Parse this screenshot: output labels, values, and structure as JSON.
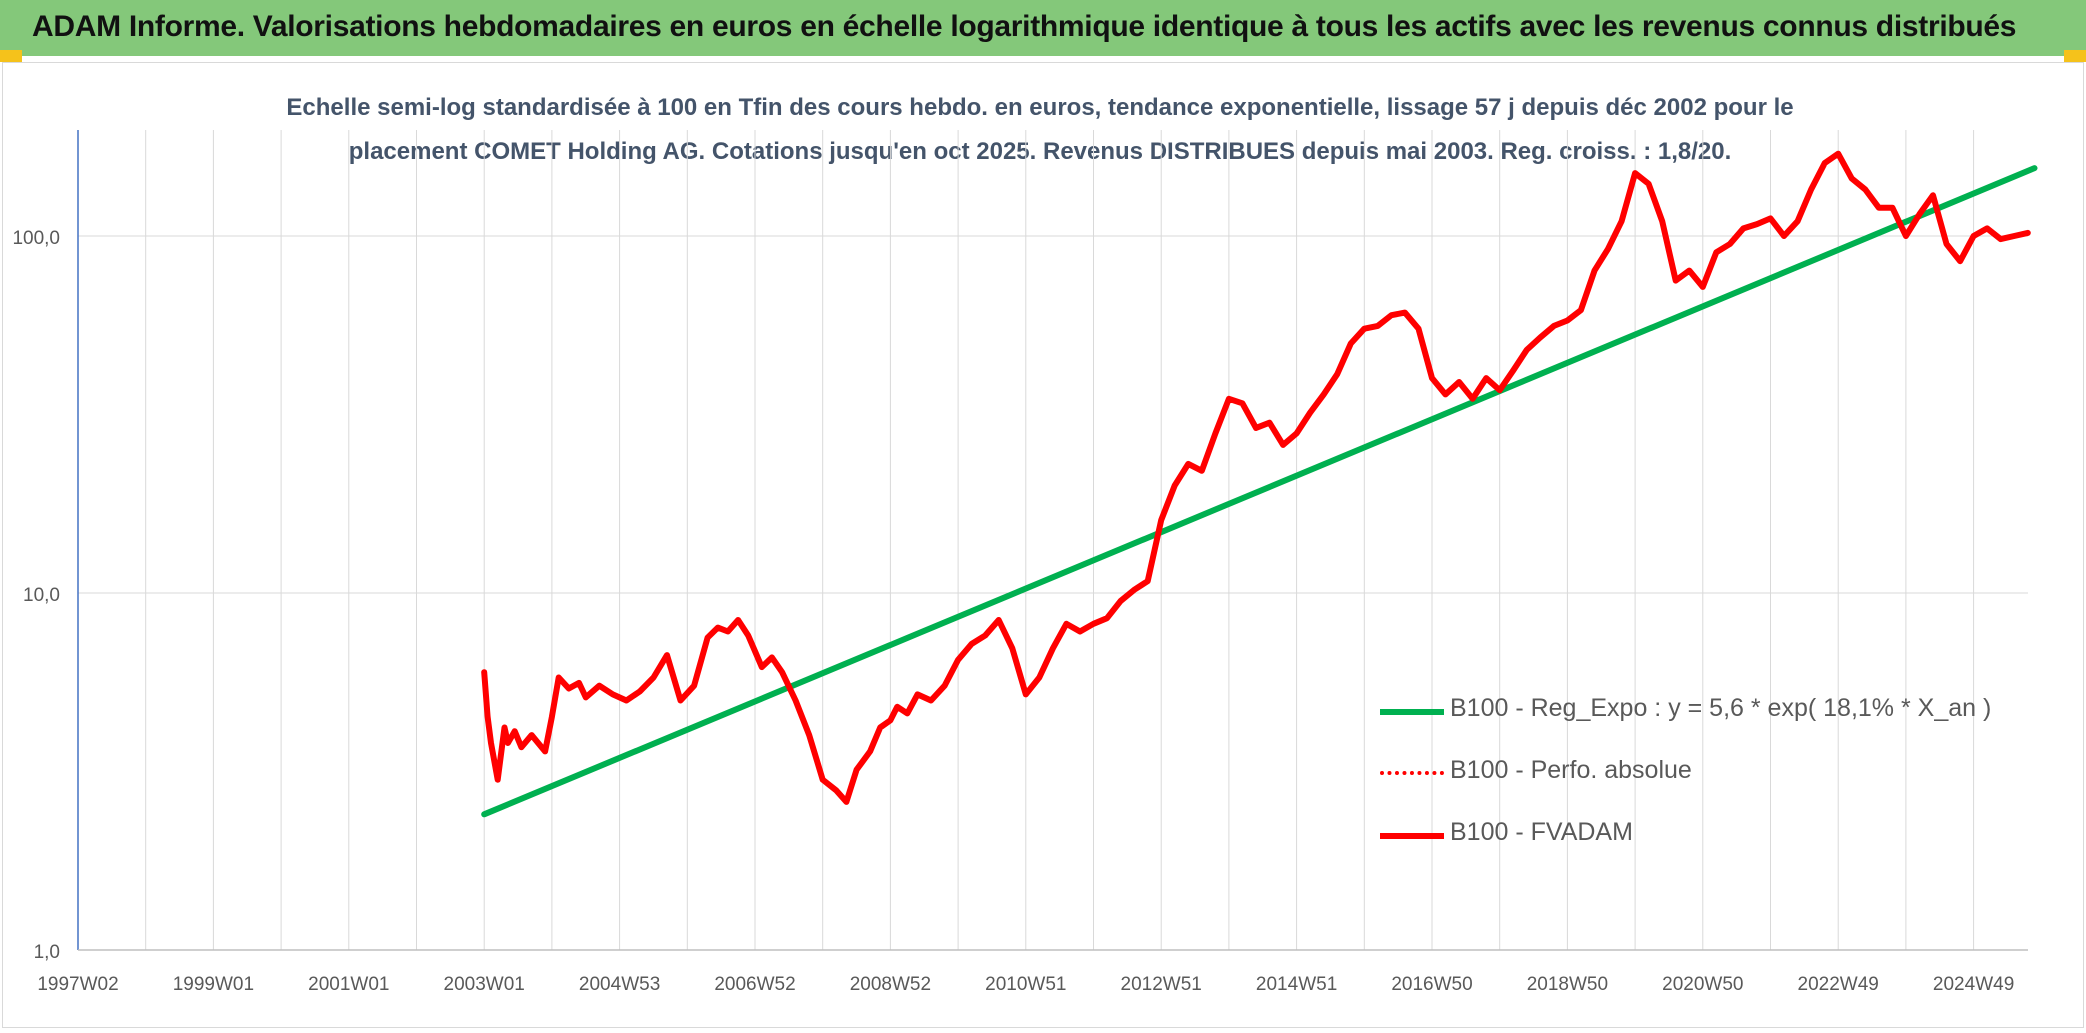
{
  "banner": {
    "title": "ADAM Informe. Valorisations hebdomadaires en euros en échelle logarithmique identique à tous les actifs avec les revenus connus distribués",
    "background": "#84c87a"
  },
  "chart_data": {
    "type": "line",
    "title": "Echelle semi-log standardisée à 100 en Tfin des cours hebdo. en euros, tendance exponentielle, lissage 57 j depuis déc 2002 pour le placement COMET Holding AG. Cotations jusqu'en oct 2025. Revenus DISTRIBUES depuis mai 2003. Reg. croiss. : 1,8/20.",
    "xlabel": "",
    "ylabel": "",
    "y_scale": "log",
    "ylim": [
      1,
      180
    ],
    "xlim": [
      1997.0,
      2025.9
    ],
    "x_tick_labels": [
      "1997W02",
      "1999W01",
      "2001W01",
      "2003W01",
      "2004W53",
      "2006W52",
      "2008W52",
      "2010W51",
      "2012W51",
      "2014W51",
      "2016W50",
      "2018W50",
      "2020W50",
      "2022W49",
      "2024W49"
    ],
    "y_tick_labels": [
      "1,0",
      "10,0",
      "100,0"
    ],
    "grid": true,
    "legend_position": "bottom-right",
    "series": [
      {
        "name": "B100 - Reg_Expo : y = 5,6 * exp( 18,1% * X_an )",
        "color": "#00b050",
        "style": "solid",
        "x": [
          2003.0,
          2025.9
        ],
        "y": [
          2.4,
          155
        ]
      },
      {
        "name": "B100 - Perfo. absolue",
        "color": "#ff0000",
        "style": "dotted",
        "x": [],
        "y": []
      },
      {
        "name": "B100 - FVADAM",
        "color": "#ff0000",
        "style": "solid",
        "x": [
          2003.0,
          2003.05,
          2003.1,
          2003.2,
          2003.3,
          2003.35,
          2003.45,
          2003.55,
          2003.7,
          2003.9,
          2004.0,
          2004.1,
          2004.25,
          2004.4,
          2004.5,
          2004.7,
          2004.9,
          2005.1,
          2005.3,
          2005.5,
          2005.7,
          2005.9,
          2006.1,
          2006.3,
          2006.45,
          2006.6,
          2006.75,
          2006.9,
          2007.1,
          2007.25,
          2007.4,
          2007.6,
          2007.8,
          2008.0,
          2008.2,
          2008.35,
          2008.5,
          2008.7,
          2008.85,
          2009.0,
          2009.1,
          2009.25,
          2009.4,
          2009.6,
          2009.8,
          2010.0,
          2010.2,
          2010.4,
          2010.6,
          2010.8,
          2011.0,
          2011.2,
          2011.4,
          2011.6,
          2011.8,
          2012.0,
          2012.2,
          2012.4,
          2012.6,
          2012.8,
          2013.0,
          2013.2,
          2013.4,
          2013.6,
          2013.8,
          2014.0,
          2014.2,
          2014.4,
          2014.6,
          2014.8,
          2015.0,
          2015.2,
          2015.4,
          2015.6,
          2015.8,
          2016.0,
          2016.2,
          2016.4,
          2016.6,
          2016.8,
          2017.0,
          2017.2,
          2017.4,
          2017.6,
          2017.8,
          2018.0,
          2018.2,
          2018.4,
          2018.6,
          2018.8,
          2019.0,
          2019.2,
          2019.4,
          2019.6,
          2019.8,
          2020.0,
          2020.2,
          2020.4,
          2020.6,
          2020.8,
          2021.0,
          2021.2,
          2021.4,
          2021.6,
          2021.8,
          2022.0,
          2022.2,
          2022.4,
          2022.6,
          2022.8,
          2023.0,
          2023.2,
          2023.4,
          2023.6,
          2023.8,
          2024.0,
          2024.2,
          2024.4,
          2024.6,
          2024.8,
          2025.0,
          2025.2,
          2025.4,
          2025.6,
          2025.8
        ],
        "y": [
          6.0,
          4.5,
          3.8,
          3.0,
          4.2,
          3.8,
          4.1,
          3.7,
          4.0,
          3.6,
          4.5,
          5.8,
          5.4,
          5.6,
          5.1,
          5.5,
          5.2,
          5.0,
          5.3,
          5.8,
          6.7,
          5.0,
          5.5,
          7.5,
          8.0,
          7.8,
          8.4,
          7.6,
          6.2,
          6.6,
          6.0,
          5.0,
          4.0,
          3.0,
          2.8,
          2.6,
          3.2,
          3.6,
          4.2,
          4.4,
          4.8,
          4.6,
          5.2,
          5.0,
          5.5,
          6.5,
          7.2,
          7.6,
          8.4,
          7.0,
          5.2,
          5.8,
          7.0,
          8.2,
          7.8,
          8.2,
          8.5,
          9.5,
          10.2,
          10.8,
          16.0,
          20.0,
          23.0,
          22.0,
          28.0,
          35.0,
          34.0,
          29.0,
          30.0,
          26.0,
          28.0,
          32.0,
          36.0,
          41.0,
          50.0,
          55.0,
          56.0,
          60.0,
          61.0,
          55.0,
          40.0,
          36.0,
          39.0,
          35.0,
          40.0,
          37.0,
          42.0,
          48.0,
          52.0,
          56.0,
          58.0,
          62.0,
          80.0,
          92.0,
          110.0,
          150.0,
          140.0,
          110.0,
          75.0,
          80.0,
          72.0,
          90.0,
          95.0,
          105.0,
          108.0,
          112.0,
          100.0,
          110.0,
          135.0,
          160.0,
          170.0,
          145.0,
          135.0,
          120.0,
          120.0,
          100.0,
          115.0,
          130.0,
          95.0,
          85.0,
          100.0,
          105.0,
          98.0,
          100.0,
          102.0
        ]
      }
    ]
  }
}
